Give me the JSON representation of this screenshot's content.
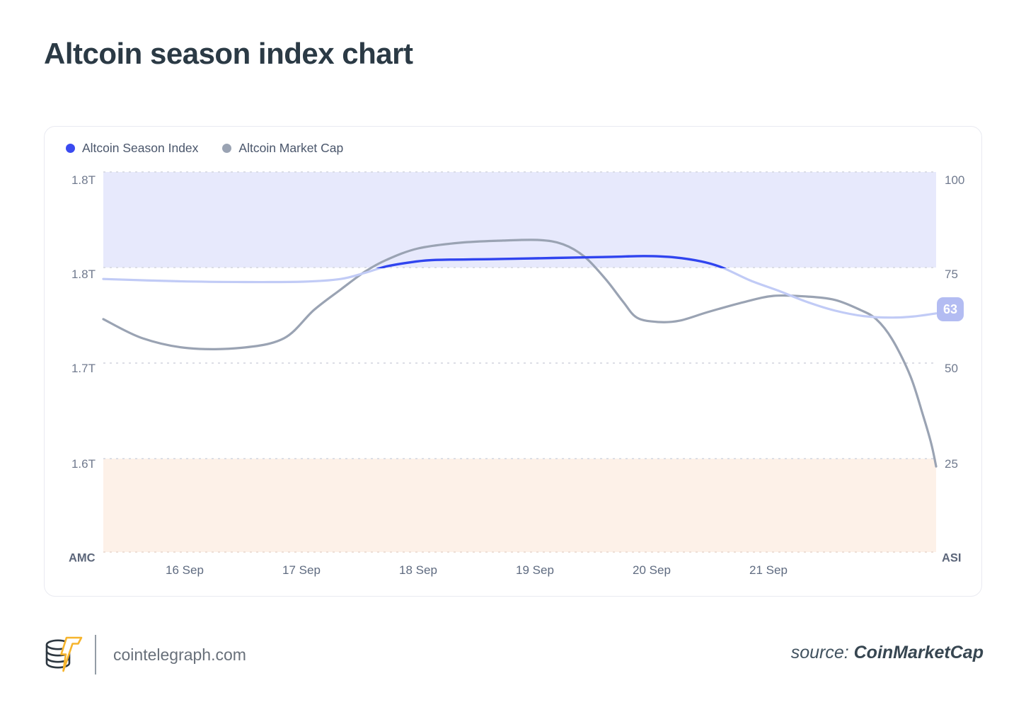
{
  "page": {
    "title": "Altcoin season index chart"
  },
  "legend": [
    {
      "label": "Altcoin Season Index",
      "color": "#3a4af0"
    },
    {
      "label": "Altcoin Market Cap",
      "color": "#9aa3b3"
    }
  ],
  "chart_data": {
    "type": "line",
    "title": "Altcoin season index chart",
    "x_ticks": [
      "16 Sep",
      "17 Sep",
      "18 Sep",
      "19 Sep",
      "20 Sep",
      "21 Sep"
    ],
    "x_tick_positions": [
      0.098,
      0.238,
      0.378,
      0.518,
      0.658,
      0.799
    ],
    "left_axis": {
      "label": "AMC",
      "ticks": [
        "1.8T",
        "1.8T",
        "1.7T",
        "1.6T"
      ]
    },
    "right_axis": {
      "label": "ASI",
      "ticks": [
        "100",
        "75",
        "50",
        "25"
      ]
    },
    "bands": [
      {
        "name": "altcoin-season-zone",
        "right_axis_range": [
          75,
          100
        ],
        "color": "#e7e9fc"
      },
      {
        "name": "bitcoin-season-zone",
        "right_axis_range": [
          0,
          25
        ],
        "color": "#fdf1e8"
      }
    ],
    "current_badge": {
      "value": "63",
      "color": "#b3bcf2"
    },
    "grid": "dotted-horizontal",
    "legend_position": "top-left",
    "layout": {
      "right_gridline_values": [
        100,
        75,
        50,
        25
      ],
      "right_axis_per_gridline": 25,
      "left_axis_anchor_top_T": 1.85,
      "left_axis_per_gridline_T": 0.05
    },
    "series": [
      {
        "name": "Altcoin Season Index",
        "axis": "right",
        "color_in_band": "#3044ef",
        "color": "#c1cbf6",
        "points": [
          [
            0.0,
            72.0
          ],
          [
            0.09,
            71.4
          ],
          [
            0.17,
            71.2
          ],
          [
            0.24,
            71.3
          ],
          [
            0.285,
            72.0
          ],
          [
            0.314,
            73.6
          ],
          [
            0.34,
            75.3
          ],
          [
            0.37,
            76.4
          ],
          [
            0.4,
            77.0
          ],
          [
            0.47,
            77.2
          ],
          [
            0.54,
            77.5
          ],
          [
            0.61,
            77.8
          ],
          [
            0.65,
            78.0
          ],
          [
            0.684,
            77.7
          ],
          [
            0.718,
            76.6
          ],
          [
            0.743,
            75.0
          ],
          [
            0.777,
            71.6
          ],
          [
            0.811,
            68.9
          ],
          [
            0.845,
            66.0
          ],
          [
            0.879,
            63.7
          ],
          [
            0.913,
            62.3
          ],
          [
            0.947,
            61.9
          ],
          [
            0.973,
            62.2
          ],
          [
            1.0,
            63.0
          ]
        ]
      },
      {
        "name": "Altcoin Market Cap",
        "axis": "left",
        "unit": "T",
        "color": "#9aa3b3",
        "points": [
          [
            0.0,
            1.773
          ],
          [
            0.047,
            1.763
          ],
          [
            0.102,
            1.7578
          ],
          [
            0.166,
            1.758
          ],
          [
            0.217,
            1.763
          ],
          [
            0.253,
            1.7778
          ],
          [
            0.285,
            1.7885
          ],
          [
            0.314,
            1.7978
          ],
          [
            0.34,
            1.804
          ],
          [
            0.378,
            1.81
          ],
          [
            0.429,
            1.813
          ],
          [
            0.48,
            1.8141
          ],
          [
            0.523,
            1.8144
          ],
          [
            0.552,
            1.8122
          ],
          [
            0.578,
            1.8056
          ],
          [
            0.603,
            1.794
          ],
          [
            0.624,
            1.7822
          ],
          [
            0.641,
            1.7737
          ],
          [
            0.667,
            1.7715
          ],
          [
            0.692,
            1.7722
          ],
          [
            0.726,
            1.7767
          ],
          [
            0.769,
            1.7819
          ],
          [
            0.805,
            1.7852
          ],
          [
            0.845,
            1.7848
          ],
          [
            0.879,
            1.783
          ],
          [
            0.909,
            1.7778
          ],
          [
            0.928,
            1.773
          ],
          [
            0.947,
            1.7626
          ],
          [
            0.969,
            1.7433
          ],
          [
            0.984,
            1.723
          ],
          [
            0.994,
            1.7081
          ],
          [
            1.0,
            1.6959
          ]
        ]
      }
    ]
  },
  "footer": {
    "logo": "cointelegraph-logo",
    "site": "cointelegraph.com",
    "source_prefix": "source: ",
    "source_name": "CoinMarketCap"
  }
}
